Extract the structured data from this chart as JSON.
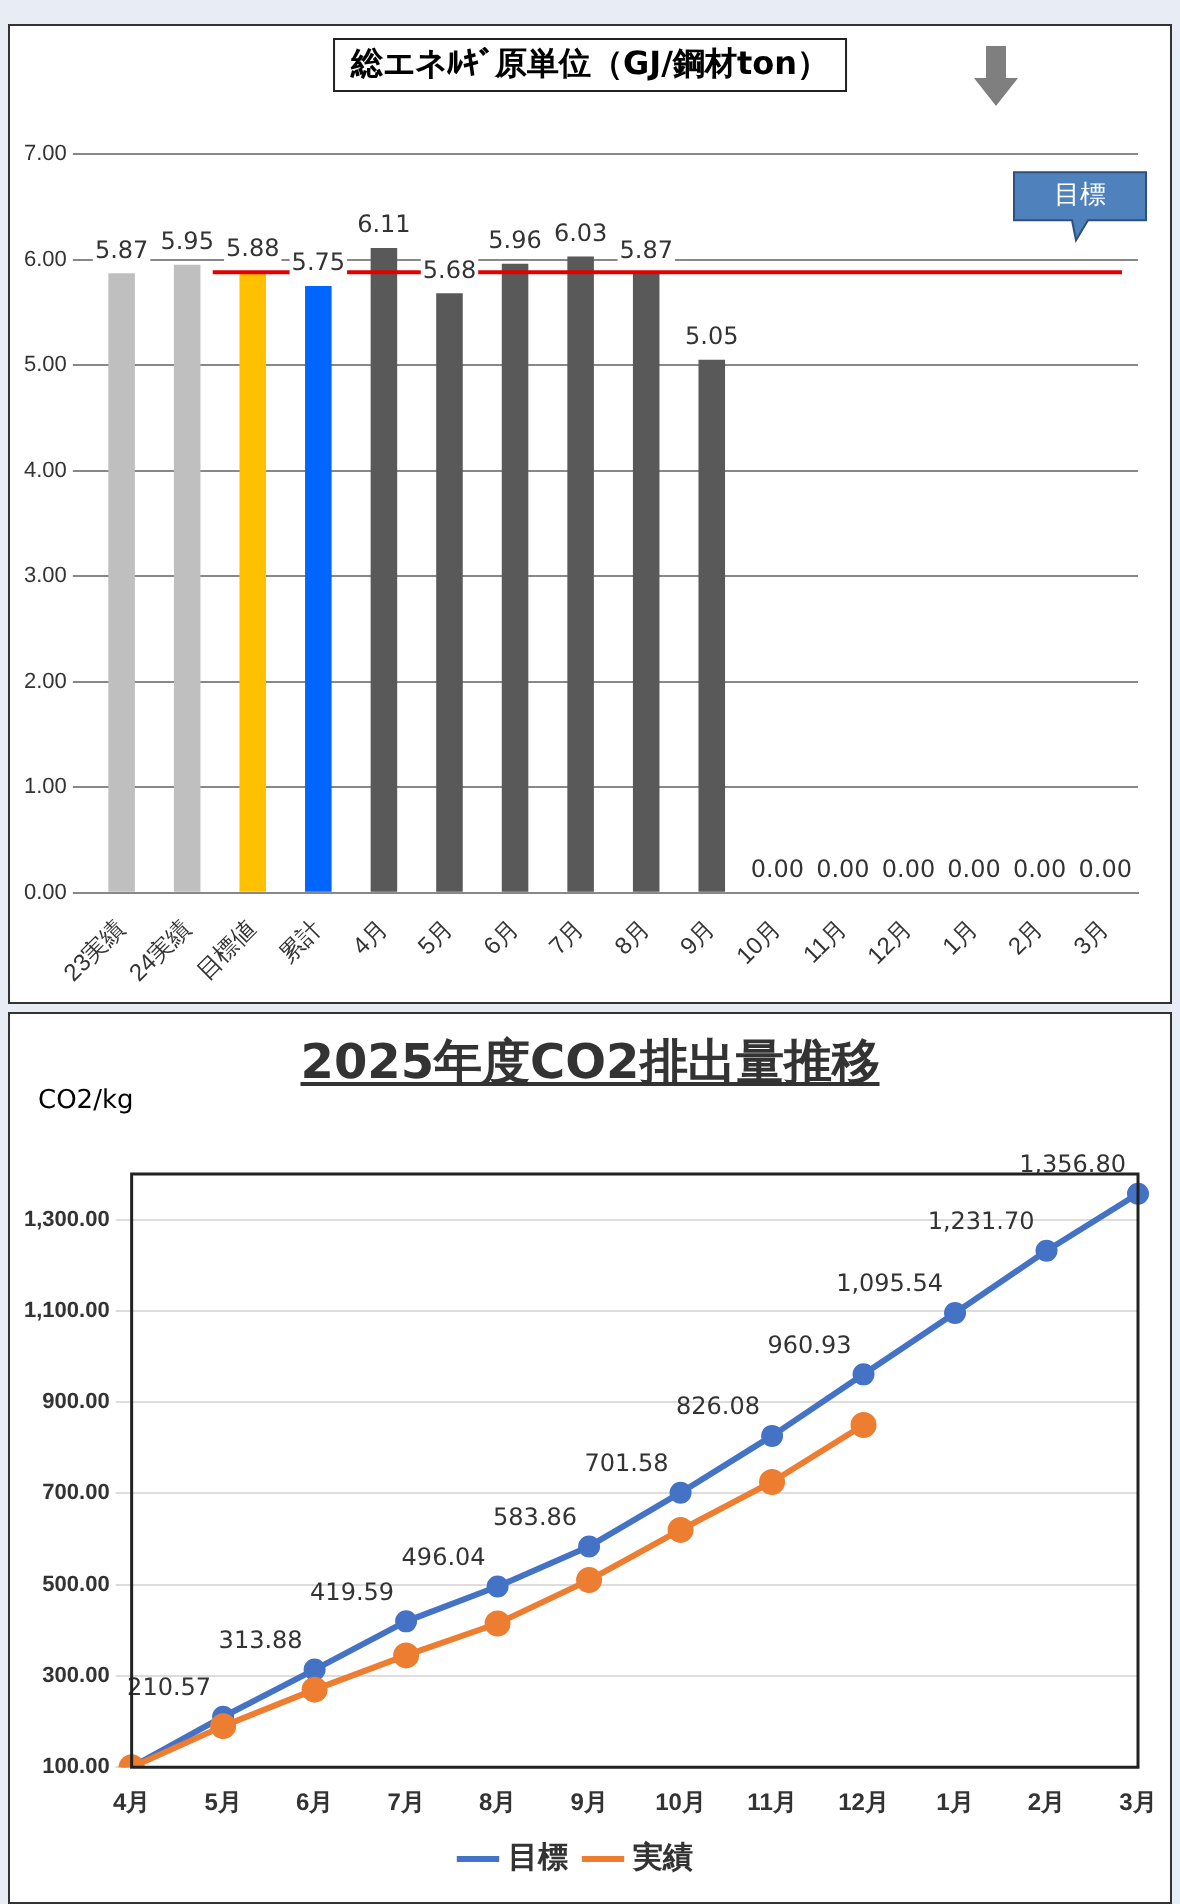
{
  "chart_data": [
    {
      "type": "bar",
      "title": "総エネﾙｷﾞ原単位（GJ/鋼材ton）",
      "categories": [
        "23実績",
        "24実績",
        "目標値",
        "累計",
        "4月",
        "5月",
        "6月",
        "7月",
        "8月",
        "9月",
        "10月",
        "11月",
        "12月",
        "1月",
        "2月",
        "3月"
      ],
      "values": [
        5.87,
        5.95,
        5.88,
        5.75,
        6.11,
        5.68,
        5.96,
        6.03,
        5.87,
        5.05,
        0,
        0,
        0,
        0,
        0,
        0
      ],
      "value_labels": [
        "5.87",
        "5.95",
        "5.88",
        "5.75",
        "6.11",
        "5.68",
        "5.96",
        "6.03",
        "5.87",
        "5.05",
        "0.00",
        "0.00",
        "0.00",
        "0.00",
        "0.00",
        "0.00"
      ],
      "colors": [
        "#bfbfbf",
        "#bfbfbf",
        "#ffc000",
        "#0066ff",
        "#595959",
        "#595959",
        "#595959",
        "#595959",
        "#595959",
        "#595959",
        "#595959",
        "#595959",
        "#595959",
        "#595959",
        "#595959",
        "#595959"
      ],
      "ylim": [
        0,
        7
      ],
      "yticks": [
        {
          "value": 0,
          "label": "0.00"
        },
        {
          "value": 1,
          "label": "1.00"
        },
        {
          "value": 2,
          "label": "2.00"
        },
        {
          "value": 3,
          "label": "3.00"
        },
        {
          "value": 4,
          "label": "4.00"
        },
        {
          "value": 5,
          "label": "5.00"
        },
        {
          "value": 6,
          "label": "6.00"
        },
        {
          "value": 7,
          "label": "7.00"
        }
      ],
      "grid": "y",
      "legend": false,
      "ref_lines": [
        {
          "axis": "y",
          "value": 5.88,
          "label": "目標",
          "color": "#e00000"
        }
      ]
    },
    {
      "type": "line",
      "title": "2025年度CO2排出量推移",
      "ylabel": "CO2/kg",
      "categories": [
        "4月",
        "5月",
        "6月",
        "7月",
        "8月",
        "9月",
        "10月",
        "11月",
        "12月",
        "1月",
        "2月",
        "3月"
      ],
      "series": [
        {
          "name": "目標",
          "color": "#4472c4",
          "values": [
            100,
            210.57,
            313.88,
            419.59,
            496.04,
            583.86,
            701.58,
            826.08,
            960.93,
            1095.54,
            1231.7,
            1356.8
          ],
          "value_labels": [
            null,
            "210.57",
            "313.88",
            "419.59",
            "496.04",
            "583.86",
            "701.58",
            "826.08",
            "960.93",
            "1,095.54",
            "1,231.70",
            "1,356.80"
          ]
        },
        {
          "name": "実績",
          "color": "#ed7d31",
          "values": [
            100,
            190,
            270,
            345,
            415,
            510,
            620,
            725,
            850,
            null,
            null,
            null
          ]
        }
      ],
      "ylim": [
        100,
        1400
      ],
      "yticks": [
        {
          "value": 100,
          "label": "100.00"
        },
        {
          "value": 300,
          "label": "300.00"
        },
        {
          "value": 500,
          "label": "500.00"
        },
        {
          "value": 700,
          "label": "700.00"
        },
        {
          "value": 900,
          "label": "900.00"
        },
        {
          "value": 1100,
          "label": "1,100.00"
        },
        {
          "value": 1300,
          "label": "1,300.00"
        }
      ],
      "grid": "y",
      "legend": "bottom",
      "marker": "circle",
      "line_style": "solid"
    }
  ]
}
